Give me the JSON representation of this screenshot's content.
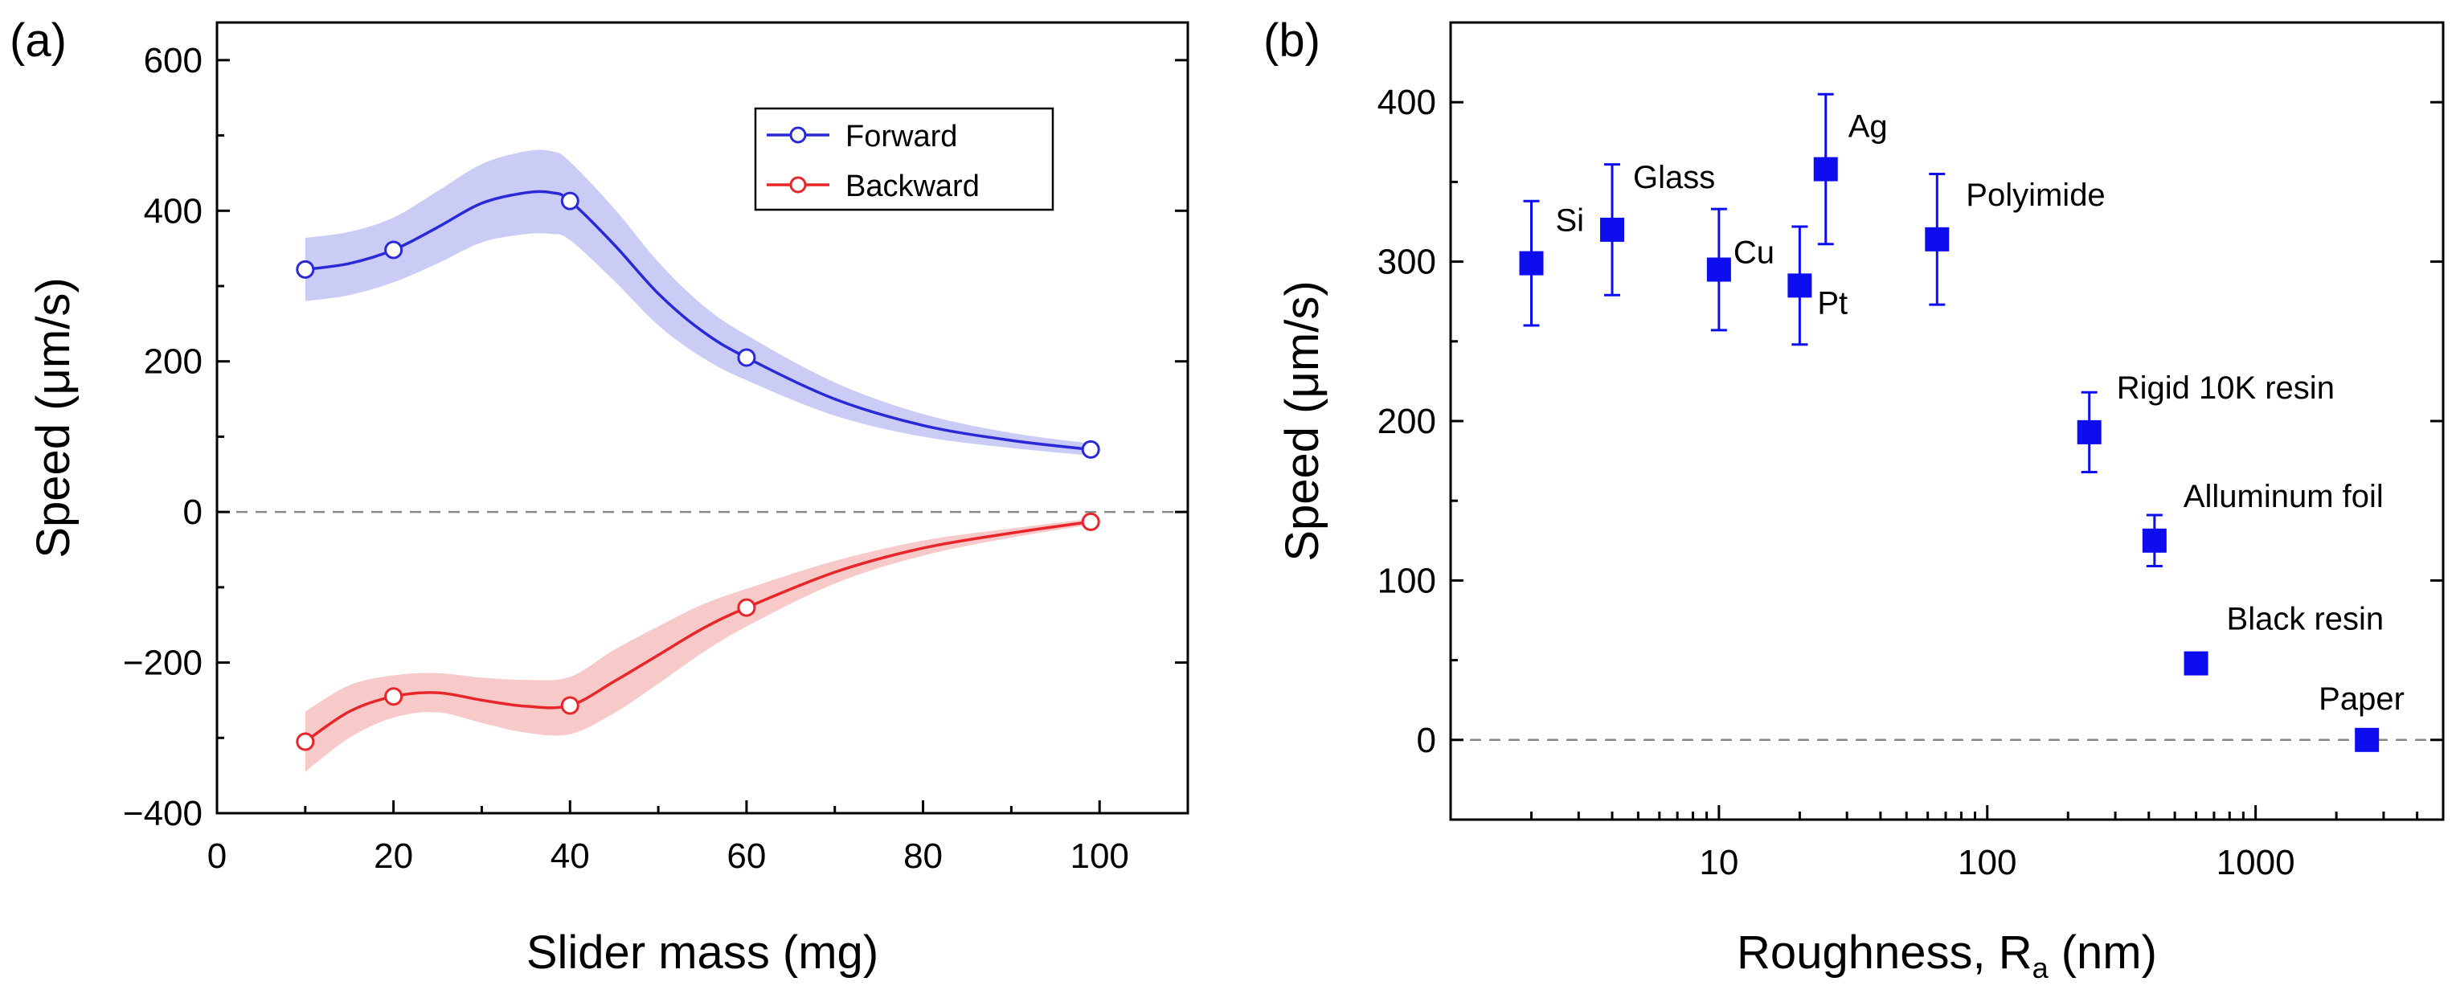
{
  "chart_data": [
    {
      "panel_label": "(a)",
      "type": "line",
      "xlabel": "Slider mass (mg)",
      "ylabel": "Speed (μm/s)",
      "xlim": [
        0,
        110
      ],
      "ylim": [
        -400,
        650
      ],
      "xticks": [
        0,
        20,
        40,
        60,
        80,
        100
      ],
      "xtick_labels": [
        "0",
        "20",
        "40",
        "60",
        "80",
        "100"
      ],
      "yticks": [
        -400,
        -200,
        0,
        200,
        400,
        600
      ],
      "ytick_labels": [
        "−400",
        "−200",
        "0",
        "200",
        "400",
        "600"
      ],
      "zero_line": true,
      "legend_position": "top-right",
      "series": [
        {
          "name": "Forward",
          "color": "#2929d6",
          "band_color": "#c7c9f5",
          "x": [
            10,
            20,
            40,
            60,
            99
          ],
          "values": [
            322,
            348,
            413,
            205,
            83
          ],
          "curve_x": [
            10,
            15,
            20,
            25,
            30,
            35,
            38,
            40,
            45,
            50,
            55,
            60,
            70,
            80,
            90,
            99
          ],
          "curve_y": [
            322,
            330,
            348,
            378,
            410,
            424,
            424,
            413,
            355,
            290,
            240,
            205,
            150,
            115,
            95,
            83
          ],
          "band_half_width": [
            42,
            42,
            43,
            48,
            52,
            55,
            55,
            52,
            48,
            42,
            35,
            30,
            22,
            15,
            10,
            8
          ]
        },
        {
          "name": "Backward",
          "color": "#e8262a",
          "band_color": "#f7c6c6",
          "x": [
            10,
            20,
            40,
            60,
            99
          ],
          "values": [
            -305,
            -245,
            -257,
            -127,
            -13
          ],
          "curve_x": [
            10,
            15,
            20,
            25,
            30,
            35,
            40,
            45,
            50,
            55,
            60,
            70,
            80,
            90,
            99
          ],
          "curve_y": [
            -305,
            -265,
            -245,
            -240,
            -250,
            -258,
            -257,
            -225,
            -190,
            -155,
            -127,
            -80,
            -48,
            -28,
            -13
          ],
          "band_half_width": [
            40,
            35,
            28,
            26,
            30,
            35,
            38,
            42,
            38,
            32,
            25,
            15,
            10,
            6,
            4
          ]
        }
      ]
    },
    {
      "panel_label": "(b)",
      "type": "scatter",
      "xlabel": "Roughness, R",
      "xlabel_subscript": "a",
      "xlabel_suffix": " (nm)",
      "ylabel": "Speed (μm/s)",
      "xscale": "log",
      "xlim": [
        1,
        5000
      ],
      "ylim": [
        -50,
        450
      ],
      "xticks": [
        10,
        100,
        1000
      ],
      "xtick_labels": [
        "10",
        "100",
        "1000"
      ],
      "yticks": [
        0,
        100,
        200,
        300,
        400
      ],
      "ytick_labels": [
        "0",
        "100",
        "200",
        "300",
        "400"
      ],
      "zero_line": true,
      "marker_color": "#0d0df0",
      "points": [
        {
          "label": "Si",
          "x": 2,
          "y": 299,
          "err": 39
        },
        {
          "label": "Glass",
          "x": 4,
          "y": 320,
          "err": 41
        },
        {
          "label": "Cu",
          "x": 10,
          "y": 295,
          "err": 38
        },
        {
          "label": "Pt",
          "x": 20,
          "y": 285,
          "err": 37
        },
        {
          "label": "Ag",
          "x": 25,
          "y": 358,
          "err": 47
        },
        {
          "label": "Polyimide",
          "x": 65,
          "y": 314,
          "err": 41
        },
        {
          "label": "Rigid 10K resin",
          "x": 240,
          "y": 193,
          "err": 25
        },
        {
          "label": "Alluminum foil",
          "x": 420,
          "y": 125,
          "err": 16
        },
        {
          "label": "Black resin",
          "x": 600,
          "y": 48,
          "err": 6
        },
        {
          "label": "Paper",
          "x": 2600,
          "y": 0,
          "err": 0
        }
      ]
    }
  ]
}
